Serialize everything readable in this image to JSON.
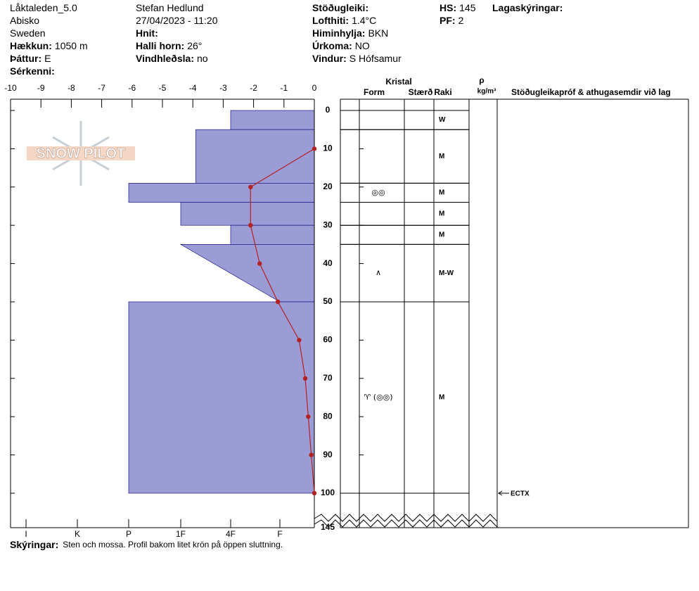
{
  "header": {
    "columns": [
      [
        {
          "text": "Låktaleden_5.0"
        },
        {
          "text": "Abisko"
        },
        {
          "text": "Sweden"
        },
        {
          "label": "Hækkun:",
          "value": "1050 m"
        },
        {
          "label": "Þáttur:",
          "value": "E"
        },
        {
          "label": "Sérkenni:"
        }
      ],
      [
        {
          "text": "Stefan Hedlund"
        },
        {
          "text": "27/04/2023 - 11:20"
        },
        {
          "label": "Hnit:"
        },
        {
          "label": "Halli horn:",
          "value": "26°"
        },
        {
          "label": "Vindhleðsla:",
          "value": "no"
        }
      ],
      [
        {
          "label": "Stöðugleiki:"
        },
        {
          "label": "Lofthiti:",
          "value": "1.4°C"
        },
        {
          "label": "Himinhylja:",
          "value": "BKN"
        },
        {
          "label": "Úrkoma:",
          "value": "NO"
        },
        {
          "label": "Vindur:",
          "value": "S Hófsamur"
        }
      ],
      [
        {
          "label": "HS:",
          "value": "145"
        },
        {
          "label": "PF:",
          "value": "2"
        }
      ],
      [
        {
          "label": "Lagaskýringar:"
        }
      ]
    ]
  },
  "logo": "SNOW PILOT",
  "chart_data": {
    "type": "snow-profile",
    "xlim": [
      -10,
      0
    ],
    "xticks": [
      -10,
      -9,
      -8,
      -7,
      -6,
      -5,
      -4,
      -3,
      -2,
      -1,
      0
    ],
    "ylim": [
      0,
      145
    ],
    "yticks": [
      0,
      10,
      20,
      30,
      40,
      50,
      60,
      70,
      80,
      90,
      100,
      145
    ],
    "hardness_ticks": [
      {
        "value": 6,
        "label": "I"
      },
      {
        "value": 5,
        "label": "K"
      },
      {
        "value": 4,
        "label": "P"
      },
      {
        "value": 3,
        "label": "1F"
      },
      {
        "value": 2,
        "label": "4F"
      },
      {
        "value": 1,
        "label": "F"
      }
    ],
    "layer_color": "#9b9bd6",
    "layers": [
      {
        "top": 0,
        "bottom": 5,
        "hardness": 2,
        "raki": "W"
      },
      {
        "top": 5,
        "bottom": 19,
        "hardness": 2.7,
        "raki": "M"
      },
      {
        "top": 19,
        "bottom": 24,
        "hardness": 4,
        "raki": "M",
        "form": "◎◎"
      },
      {
        "top": 24,
        "bottom": 30,
        "hardness": 3,
        "raki": "M"
      },
      {
        "top": 30,
        "bottom": 35,
        "hardness": 2,
        "raki": "M"
      },
      {
        "top": 35,
        "bottom": 50,
        "hardness": 3,
        "hardness_bottom": 1,
        "raki": "M-W",
        "form": "∧"
      },
      {
        "top": 50,
        "bottom": 100,
        "hardness": 4,
        "raki": "M",
        "form": "♈ (◎◎)"
      }
    ],
    "temperature": {
      "color": "#b22222",
      "depth": [
        10,
        20,
        30,
        40,
        50,
        60,
        70,
        80,
        90,
        100
      ],
      "values": [
        0,
        -2.1,
        -2.1,
        -1.8,
        -1.2,
        -0.5,
        -0.3,
        -0.2,
        -0.1,
        0
      ]
    },
    "table_headers": {
      "kristal": "Kristal",
      "form": "Form",
      "size": "Stærð",
      "raki": "Raki",
      "rho": "ρ",
      "density": "kg/m³",
      "tests": "Stöðugleikapróf & athugasemdir við lag"
    },
    "test": {
      "depth": 100,
      "label": "ECTX"
    }
  },
  "footer": {
    "label": "Skýringar:",
    "value": "Sten och mossa. Profil bakom litet krön  på öppen sluttning."
  }
}
